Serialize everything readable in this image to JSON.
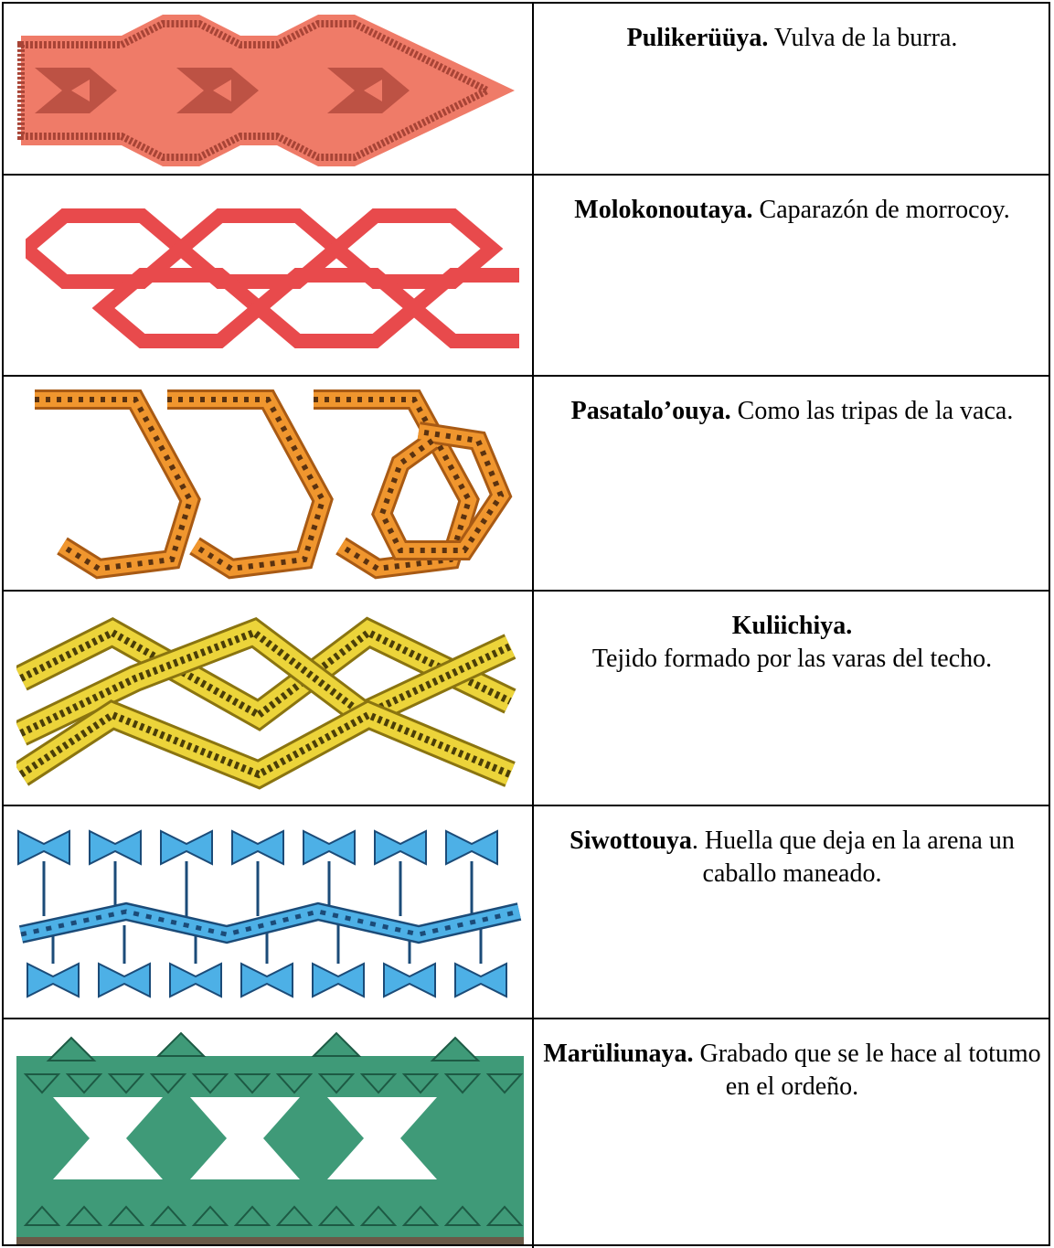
{
  "rows": [
    {
      "name": "Pulikerüüya.",
      "description": " Vulva de la burra."
    },
    {
      "name": "Molokonoutaya.",
      "description": " Caparazón de morrocoy."
    },
    {
      "name": "Pasatalo’ouya.",
      "description": " Como las tripas de la vaca."
    },
    {
      "name": "Kuliichiya.",
      "description": "Tejido formado por las varas del techo."
    },
    {
      "name": "Siwottouya",
      "description": ". Huella que deja en la arena un caballo maneado."
    },
    {
      "name": "Marüliunaya.",
      "description": " Grabado que se le hace al totumo en el ordeño."
    }
  ]
}
